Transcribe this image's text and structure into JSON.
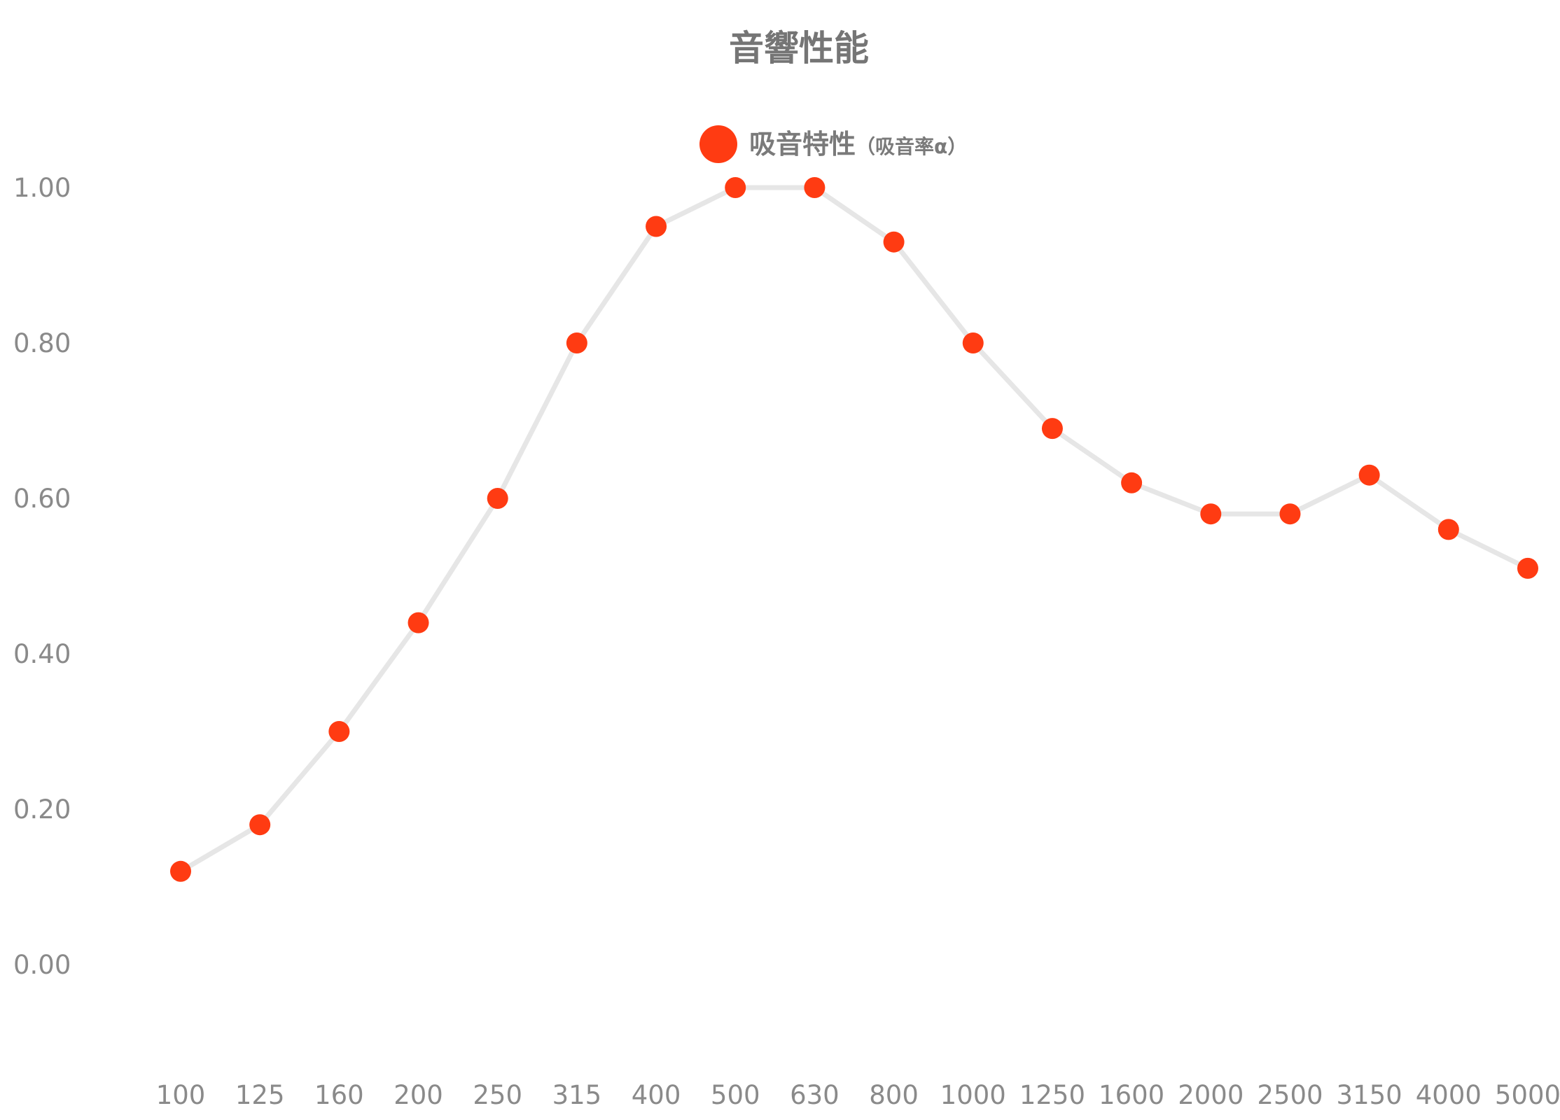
{
  "chart_data": {
    "type": "line",
    "title": "音響性能",
    "xlabel": "",
    "ylabel": "",
    "categories": [
      "100",
      "125",
      "160",
      "200",
      "250",
      "315",
      "400",
      "500",
      "630",
      "800",
      "1000",
      "1250",
      "1600",
      "2000",
      "2500",
      "3150",
      "4000",
      "5000"
    ],
    "series": [
      {
        "name": "吸音特性",
        "name_suffix": "（吸音率α）",
        "values": [
          0.12,
          0.18,
          0.3,
          0.44,
          0.6,
          0.8,
          0.95,
          1.0,
          1.0,
          0.93,
          0.8,
          0.69,
          0.62,
          0.58,
          0.58,
          0.63,
          0.56,
          0.51
        ]
      }
    ],
    "y_ticks": [
      "0.00",
      "0.20",
      "0.40",
      "0.60",
      "0.80",
      "1.00"
    ],
    "ylim": [
      -0.1,
      1.1
    ],
    "grid": false,
    "legend_position": "top-center",
    "colors": {
      "marker": "#ff3b12",
      "line": "#e6e6e6",
      "text": "#8a8a8a",
      "title": "#757575"
    }
  }
}
